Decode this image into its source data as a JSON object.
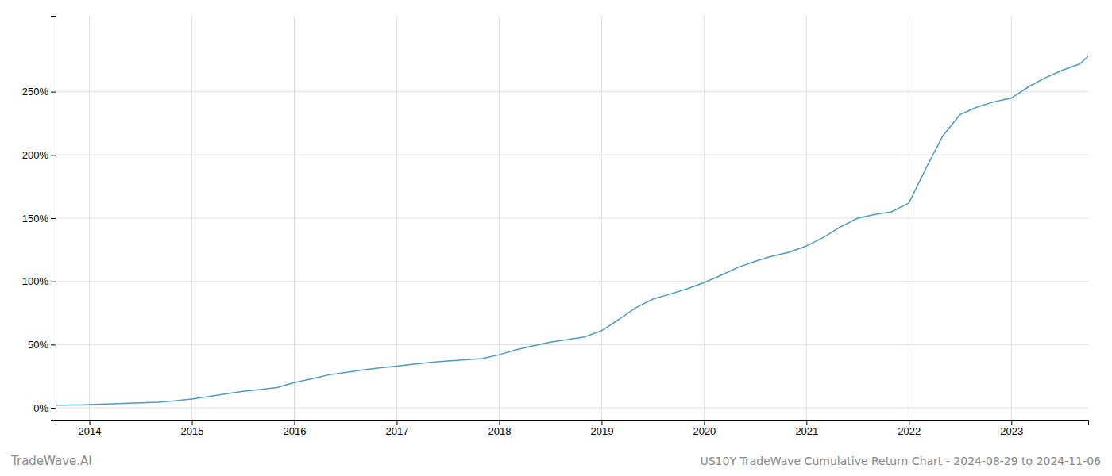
{
  "chart_data": {
    "type": "line",
    "title": "US10Y TradeWave Cumulative Return Chart - 2024-08-29 to 2024-11-06",
    "annotations": [
      "TradeWave.AI"
    ],
    "color": "#4a9cc7",
    "grid": true,
    "xlim": [
      2013.67,
      2023.75
    ],
    "xticks": [
      2014,
      2015,
      2016,
      2017,
      2018,
      2019,
      2020,
      2021,
      2022,
      2023
    ],
    "ylim": [
      -10,
      310
    ],
    "yticks": [
      {
        "value": 0,
        "label": "0%"
      },
      {
        "value": 50,
        "label": "50%"
      },
      {
        "value": 100,
        "label": "100%"
      },
      {
        "value": 150,
        "label": "150%"
      },
      {
        "value": 200,
        "label": "200%"
      },
      {
        "value": 250,
        "label": "250%"
      }
    ],
    "x": [
      2013.67,
      2013.75,
      2013.83,
      2013.92,
      2014.0,
      2014.17,
      2014.33,
      2014.5,
      2014.67,
      2014.83,
      2015.0,
      2015.17,
      2015.33,
      2015.5,
      2015.67,
      2015.83,
      2016.0,
      2016.17,
      2016.33,
      2016.5,
      2016.67,
      2016.83,
      2017.0,
      2017.17,
      2017.33,
      2017.5,
      2017.67,
      2017.83,
      2018.0,
      2018.17,
      2018.33,
      2018.5,
      2018.67,
      2018.83,
      2019.0,
      2019.17,
      2019.33,
      2019.5,
      2019.67,
      2019.83,
      2020.0,
      2020.17,
      2020.33,
      2020.5,
      2020.67,
      2020.83,
      2021.0,
      2021.17,
      2021.33,
      2021.5,
      2021.67,
      2021.83,
      2022.0,
      2022.17,
      2022.33,
      2022.5,
      2022.67,
      2022.83,
      2023.0,
      2023.17,
      2023.33,
      2023.5,
      2023.67,
      2023.75
    ],
    "values": [
      2.0,
      2.1,
      2.2,
      2.3,
      2.5,
      3.0,
      3.5,
      4.0,
      4.5,
      5.5,
      7.0,
      9.0,
      11.0,
      13.0,
      14.5,
      16.0,
      20.0,
      23.0,
      26.0,
      28.0,
      30.0,
      31.5,
      33.0,
      34.5,
      36.0,
      37.0,
      38.0,
      39.0,
      42.0,
      46.0,
      49.0,
      52.0,
      54.0,
      56.0,
      61.0,
      70.0,
      79.0,
      86.0,
      90.0,
      94.0,
      99.0,
      105.0,
      111.0,
      116.0,
      120.0,
      123.0,
      128.0,
      135.0,
      143.0,
      150.0,
      153.0,
      155.0,
      162.0,
      190.0,
      215.0,
      232.0,
      238.0,
      242.0,
      245.0,
      254.0,
      261.0,
      267.0,
      272.0,
      278.0
    ]
  }
}
